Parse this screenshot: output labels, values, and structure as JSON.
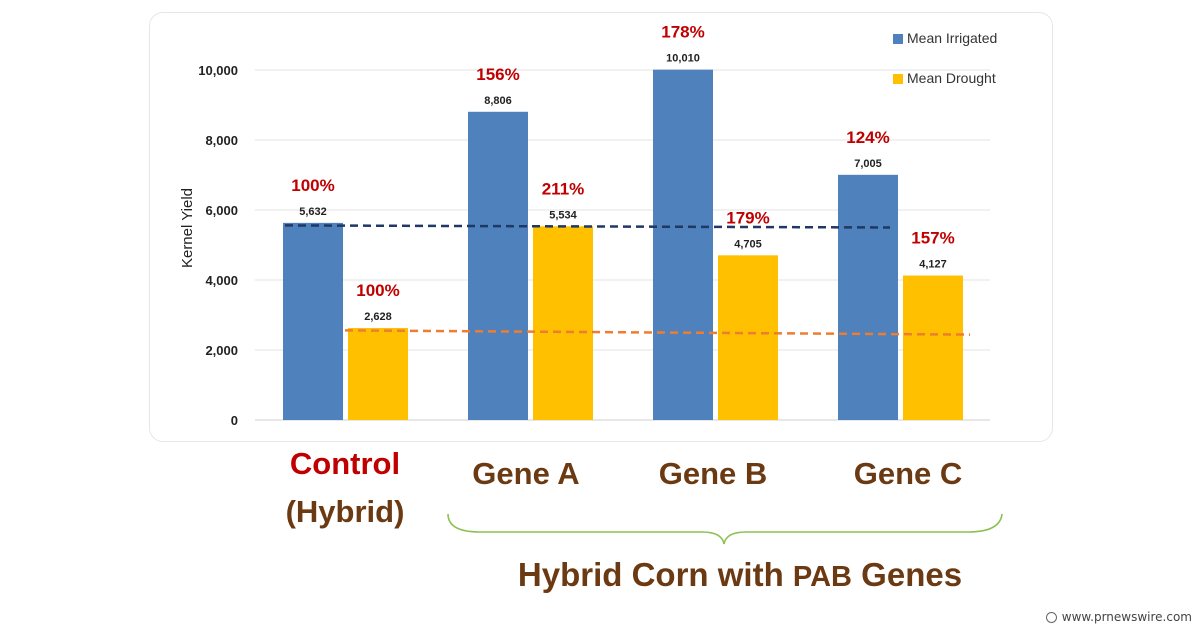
{
  "chart_data": {
    "type": "bar",
    "ylabel": "Kernel Yield",
    "ylim": [
      0,
      10000
    ],
    "yticks": [
      "0",
      "2,000",
      "4,000",
      "6,000",
      "8,000",
      "10,000"
    ],
    "ytick_values": [
      0,
      2000,
      4000,
      6000,
      8000,
      10000
    ],
    "categories": [
      "Control (Hybrid)",
      "Gene A",
      "Gene B",
      "Gene C"
    ],
    "series": [
      {
        "name": "Mean Irrigated",
        "color": "#4f81bd",
        "values": [
          5632,
          8806,
          10010,
          7005
        ],
        "labels": [
          "5,632",
          "8,806",
          "10,010",
          "7,005"
        ],
        "percent_labels": [
          "100%",
          "156%",
          "178%",
          "124%"
        ]
      },
      {
        "name": "Mean Drought",
        "color": "#ffc000",
        "values": [
          2628,
          5534,
          4705,
          4127
        ],
        "labels": [
          "2,628",
          "5,534",
          "4,705",
          "4,127"
        ],
        "percent_labels": [
          "100%",
          "211%",
          "179%",
          "157%"
        ]
      }
    ],
    "reference_lines": [
      {
        "series": "Mean Irrigated",
        "values": [
          5560,
          5500
        ],
        "color": "#1f3864",
        "style": "dashed"
      },
      {
        "series": "Mean Drought",
        "values": [
          2560,
          2440
        ],
        "color": "#ed7d31",
        "style": "dashed"
      }
    ],
    "grid": true,
    "legend_position": "top-right",
    "percent_label_color": "#c00000"
  },
  "labels": {
    "control": "Control",
    "control_sub": "(Hybrid)",
    "gene_a": "Gene A",
    "gene_b": "Gene B",
    "gene_c": "Gene C",
    "caption_prefix": "Hybrid Corn with",
    "caption_pab": "PAB",
    "caption_suffix": "Genes"
  },
  "credit": "www.prnewswire.com"
}
